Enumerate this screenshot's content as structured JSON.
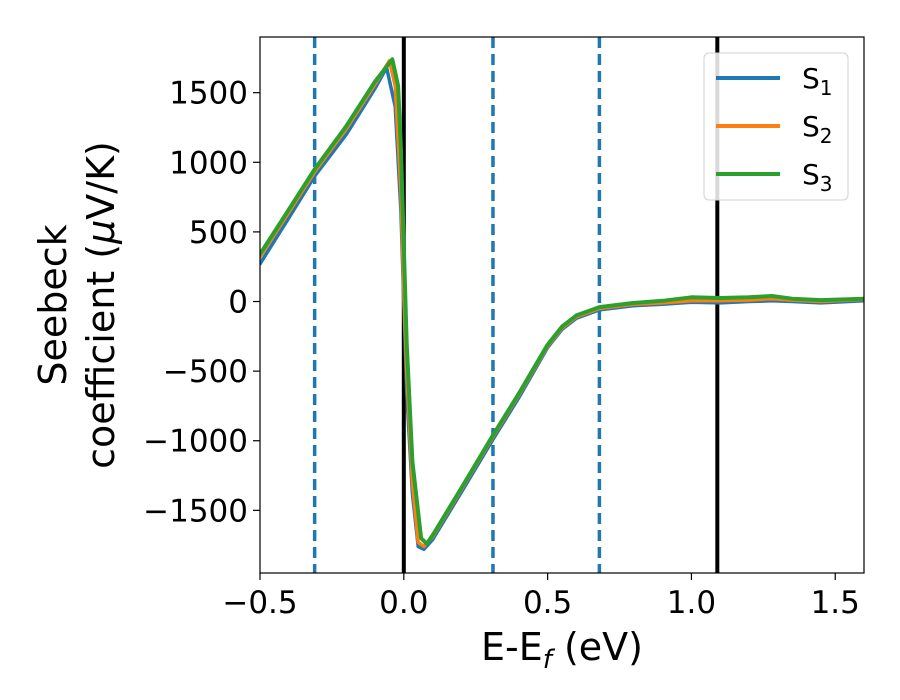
{
  "chart_data": {
    "type": "line",
    "xlabel": "E-E",
    "xlabel_sub": "f",
    "xlabel_unit": " (eV)",
    "ylabel_line1": "Seebeck",
    "ylabel_line2_prefix": "coefficient  (",
    "ylabel_mu": "μ",
    "ylabel_line2_suffix": "V/K)",
    "xlim": [
      -0.5,
      1.6
    ],
    "ylim": [
      -1950,
      1900
    ],
    "xticks": [
      -0.5,
      0.0,
      0.5,
      1.0,
      1.5
    ],
    "xtick_labels": [
      "−0.5",
      "0.0",
      "0.5",
      "1.0",
      "1.5"
    ],
    "yticks": [
      -1500,
      -1000,
      -500,
      0,
      500,
      1000,
      1500
    ],
    "ytick_labels": [
      "−1500",
      "−1000",
      "−500",
      "0",
      "500",
      "1000",
      "1500"
    ],
    "grid": false,
    "legend_position": "upper right",
    "vlines_solid": [
      0.0,
      1.09
    ],
    "vlines_dashed": [
      -0.31,
      0.31,
      0.68
    ],
    "series": [
      {
        "name": "S",
        "sub": "1",
        "color": "#1f77b4",
        "x": [
          -0.5,
          -0.4,
          -0.31,
          -0.2,
          -0.1,
          -0.06,
          -0.03,
          -0.01,
          0.0,
          0.01,
          0.03,
          0.05,
          0.07,
          0.1,
          0.2,
          0.31,
          0.4,
          0.5,
          0.55,
          0.6,
          0.68,
          0.8,
          0.9,
          1.0,
          1.1,
          1.2,
          1.28,
          1.35,
          1.45,
          1.6
        ],
        "y": [
          270,
          600,
          900,
          1200,
          1530,
          1680,
          1400,
          650,
          0,
          -650,
          -1380,
          -1760,
          -1780,
          -1710,
          -1370,
          -990,
          -690,
          -330,
          -200,
          -120,
          -60,
          -30,
          -20,
          -5,
          -10,
          0,
          5,
          0,
          -10,
          5
        ]
      },
      {
        "name": "S",
        "sub": "2",
        "color": "#ff7f0e",
        "x": [
          -0.5,
          -0.4,
          -0.31,
          -0.2,
          -0.1,
          -0.05,
          -0.03,
          -0.01,
          0.0,
          0.01,
          0.03,
          0.05,
          0.07,
          0.1,
          0.2,
          0.31,
          0.4,
          0.5,
          0.55,
          0.6,
          0.68,
          0.8,
          0.9,
          1.0,
          1.1,
          1.2,
          1.28,
          1.35,
          1.45,
          1.6
        ],
        "y": [
          320,
          640,
          930,
          1240,
          1560,
          1730,
          1550,
          800,
          100,
          -500,
          -1300,
          -1730,
          -1760,
          -1690,
          -1350,
          -970,
          -670,
          -320,
          -190,
          -110,
          -50,
          -20,
          -10,
          5,
          5,
          10,
          20,
          10,
          0,
          15
        ]
      },
      {
        "name": "S",
        "sub": "3",
        "color": "#2ca02c",
        "x": [
          -0.5,
          -0.4,
          -0.31,
          -0.2,
          -0.1,
          -0.04,
          -0.02,
          -0.01,
          0.0,
          0.01,
          0.03,
          0.06,
          0.08,
          0.1,
          0.2,
          0.31,
          0.4,
          0.5,
          0.55,
          0.6,
          0.68,
          0.8,
          0.9,
          1.0,
          1.1,
          1.2,
          1.28,
          1.35,
          1.45,
          1.6
        ],
        "y": [
          340,
          660,
          950,
          1260,
          1580,
          1740,
          1550,
          1100,
          400,
          -300,
          -1150,
          -1700,
          -1740,
          -1680,
          -1340,
          -960,
          -660,
          -310,
          -180,
          -100,
          -40,
          -10,
          5,
          30,
          25,
          30,
          40,
          20,
          10,
          20
        ]
      }
    ]
  }
}
